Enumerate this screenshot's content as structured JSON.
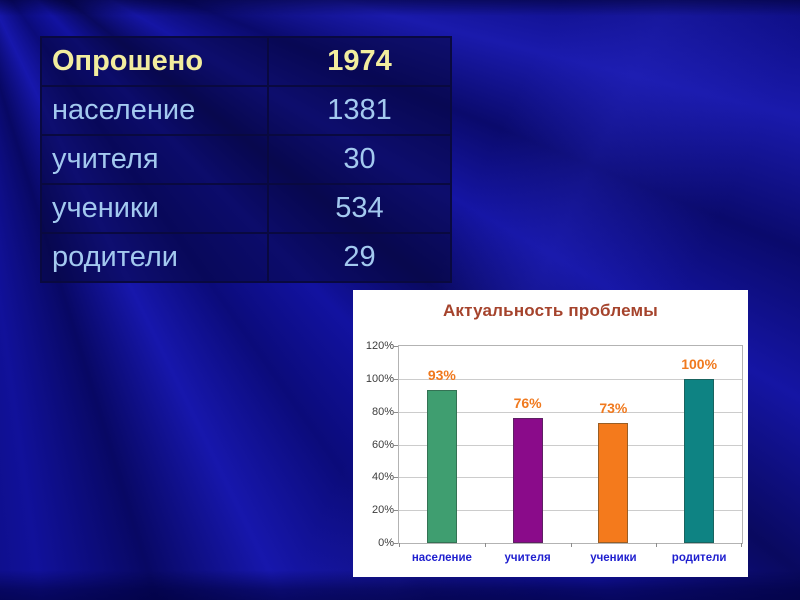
{
  "colors": {
    "slide_background": "#0b0b85",
    "table_border": "#090940",
    "table_background": "rgba(8,8,64,0.55)",
    "table_header_text": "#f2ed9e",
    "table_body_text": "#a3c9ef",
    "chart_background": "#ffffff"
  },
  "table": {
    "header": {
      "label": "Опрошено",
      "value": "1974"
    },
    "rows": [
      {
        "label": "население",
        "value": "1381"
      },
      {
        "label": "учителя",
        "value": "30"
      },
      {
        "label": "ученики",
        "value": "534"
      },
      {
        "label": "родители",
        "value": "29"
      }
    ]
  },
  "chart_data": {
    "type": "bar",
    "title": "Актуальность проблемы",
    "categories": [
      "население",
      "учителя",
      "ученики",
      "родители"
    ],
    "values": [
      93,
      76,
      73,
      100
    ],
    "value_labels": [
      "93%",
      "76%",
      "73%",
      "100%"
    ],
    "bar_colors": [
      "#3f9e70",
      "#8a0b8a",
      "#f47a1c",
      "#0e8383"
    ],
    "xlabel": "",
    "ylabel": "",
    "ylim": [
      0,
      120
    ],
    "yticks": [
      "0%",
      "20%",
      "40%",
      "60%",
      "80%",
      "100%",
      "120%"
    ],
    "grid": true,
    "legend": false,
    "title_color": "#a5432c",
    "label_color": "#f0791e",
    "category_color": "#1f1fcf",
    "tick_color": "#3d3d3d",
    "gridline_color": "#cccccc"
  }
}
